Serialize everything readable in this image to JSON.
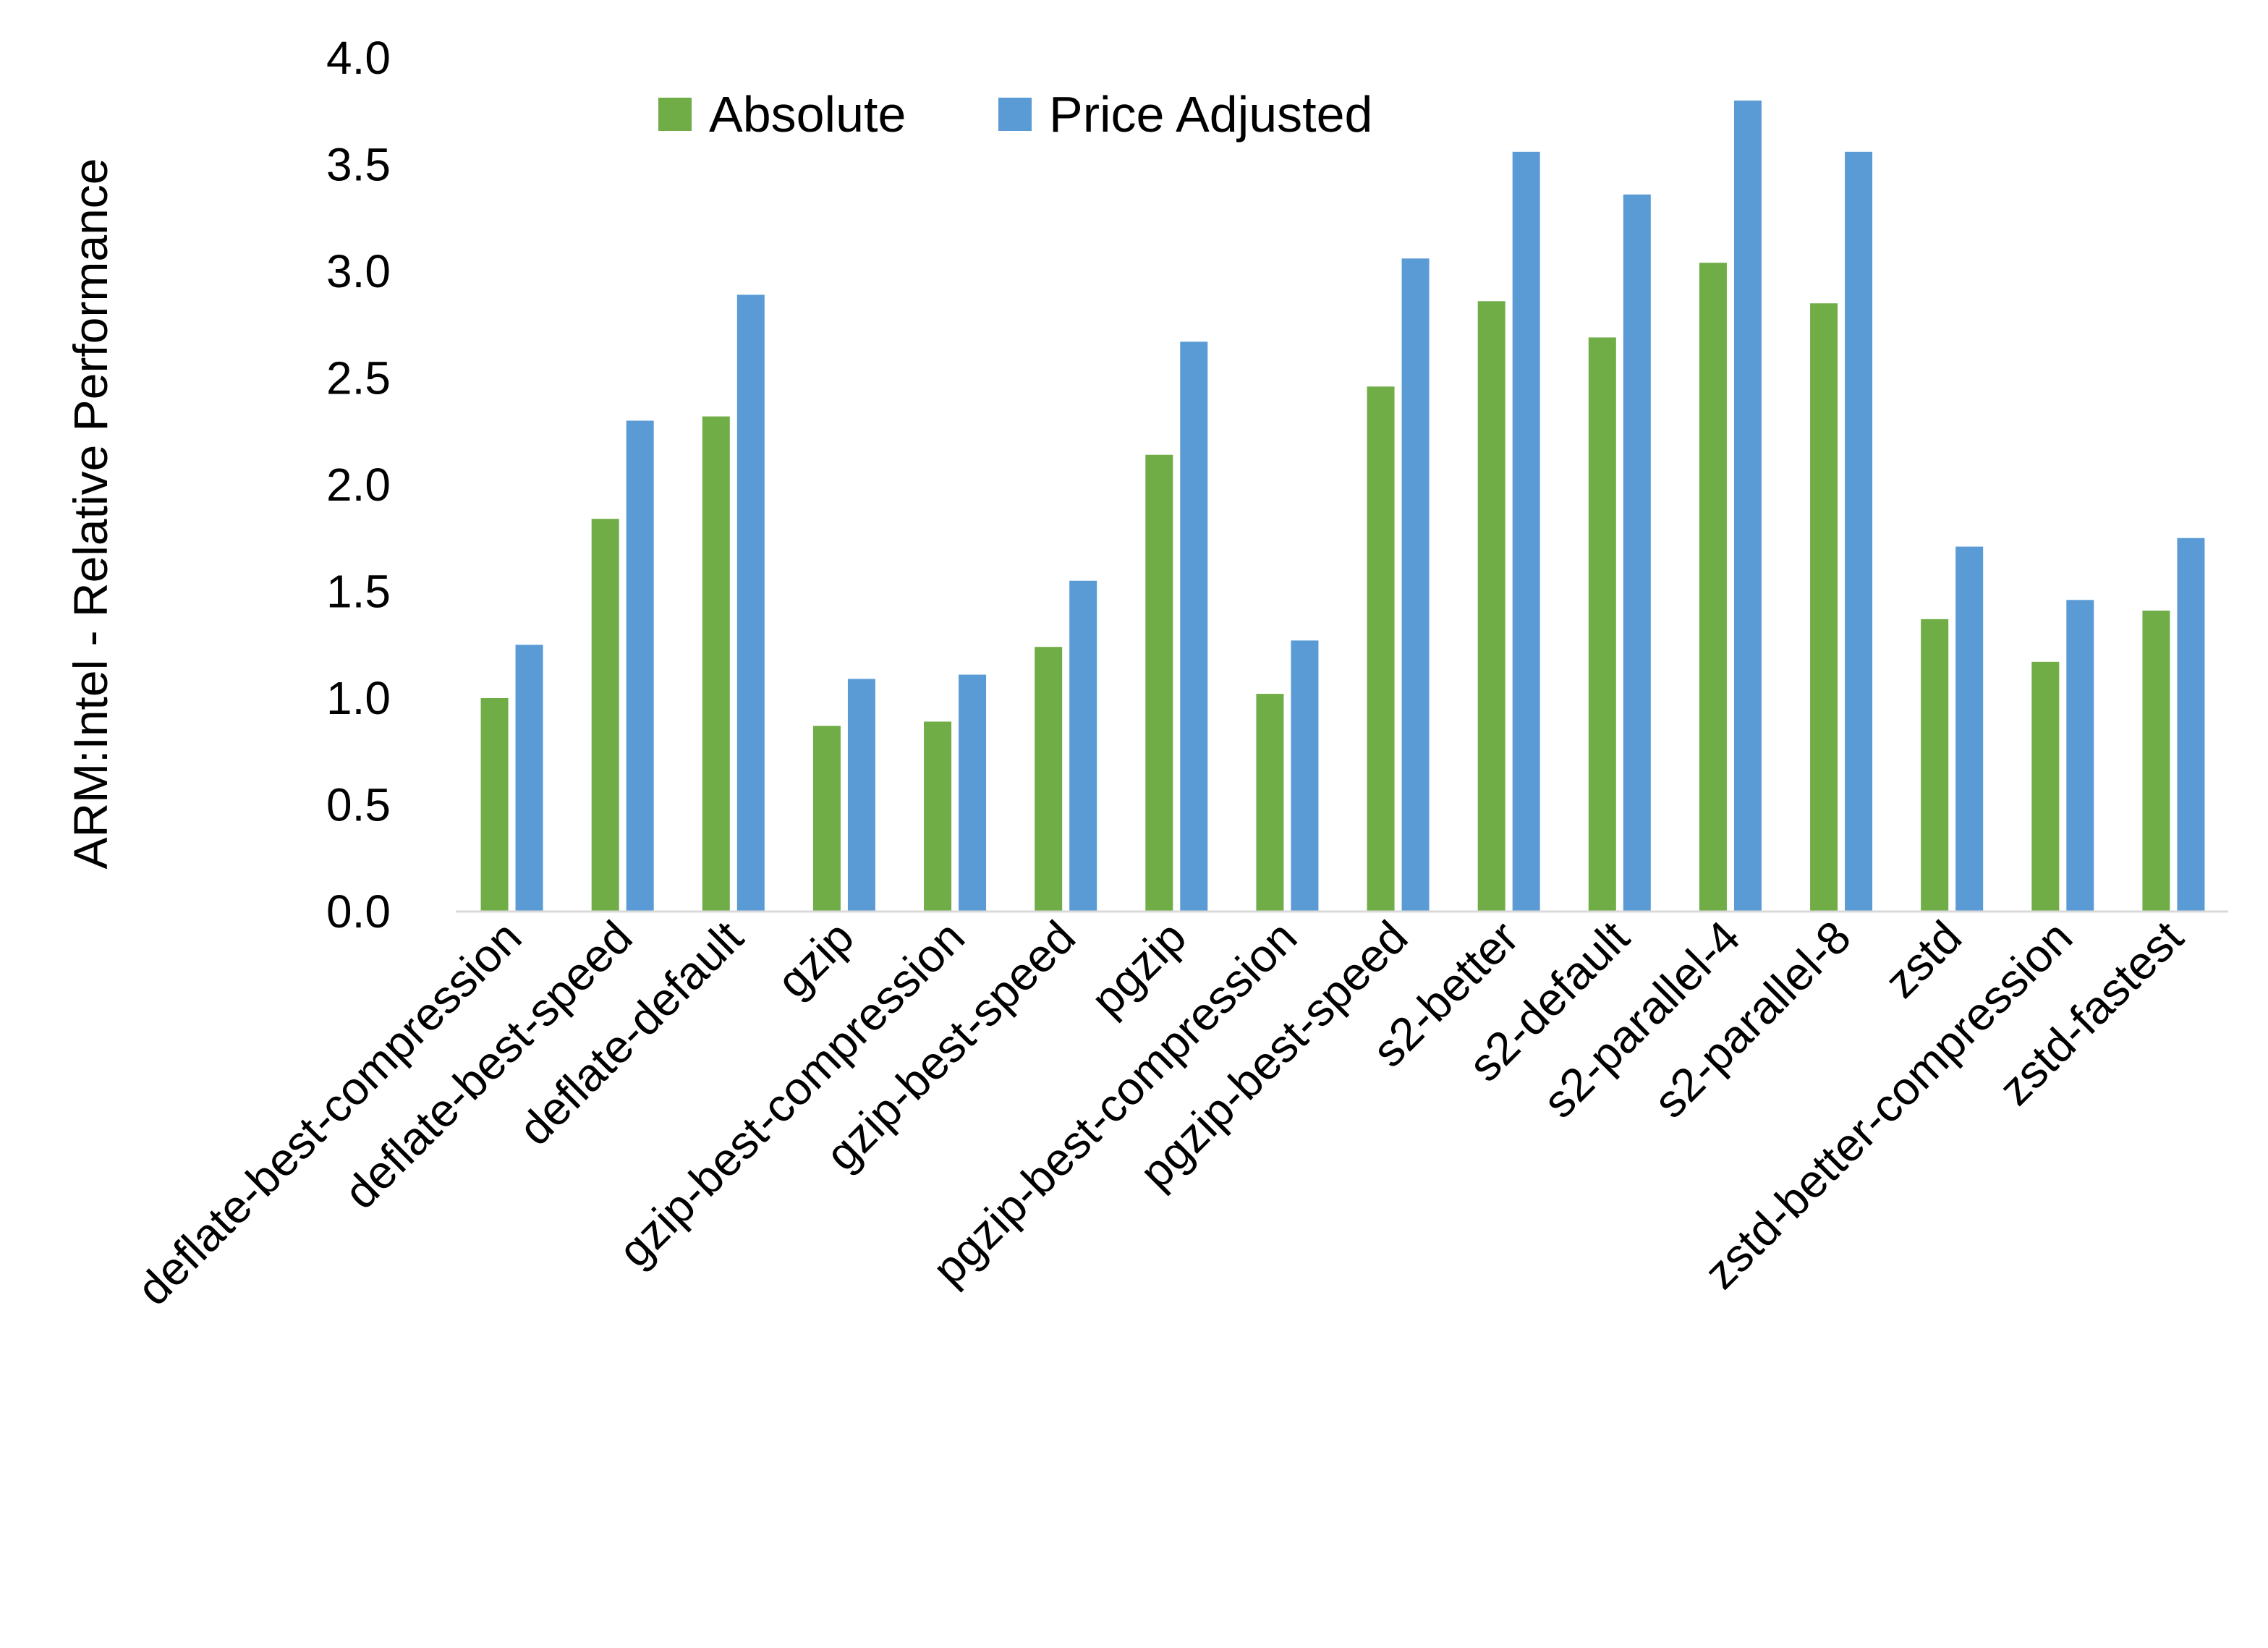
{
  "chart_data": {
    "type": "bar",
    "title": "",
    "xlabel": "",
    "ylabel": "ARM:Intel - Relative Performance",
    "ylim": [
      0,
      4.0
    ],
    "yticks": [
      "0.0",
      "0.5",
      "1.0",
      "1.5",
      "2.0",
      "2.5",
      "3.0",
      "3.5",
      "4.0"
    ],
    "grid": false,
    "legend": "top",
    "categories": [
      "deflate-best-compression",
      "deflate-best-speed",
      "deflate-default",
      "gzip",
      "gzip-best-compression",
      "gzip-best-speed",
      "pgzip",
      "pgzip-best-compression",
      "pgzip-best-speed",
      "s2-better",
      "s2-default",
      "s2-parallel-4",
      "s2-parallel-8",
      "zstd",
      "zstd-better-compression",
      "zstd-fastest"
    ],
    "series": [
      {
        "name": "Absolute",
        "color": "#70AD47",
        "values": [
          1.0,
          1.84,
          2.32,
          0.87,
          0.89,
          1.24,
          2.14,
          1.02,
          2.46,
          2.86,
          2.69,
          3.04,
          2.85,
          1.37,
          1.17,
          1.41
        ]
      },
      {
        "name": "Price Adjusted",
        "color": "#5B9BD5",
        "values": [
          1.25,
          2.3,
          2.89,
          1.09,
          1.11,
          1.55,
          2.67,
          1.27,
          3.06,
          3.56,
          3.36,
          3.8,
          3.56,
          1.71,
          1.46,
          1.75
        ]
      }
    ]
  }
}
